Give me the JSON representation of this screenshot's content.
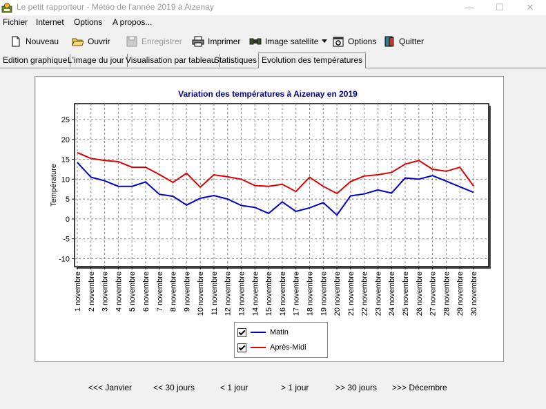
{
  "window": {
    "title": "Le petit rapporteur - Météo de l'année 2019 à Aizenay",
    "minimize": "—",
    "maximize": "☐",
    "close": "✕"
  },
  "menu": [
    "Fichier",
    "Internet",
    "Options",
    "A propos..."
  ],
  "toolbar": {
    "nouveau": "Nouveau",
    "ouvrir": "Ouvrir",
    "enregistrer": "Enregistrer",
    "imprimer": "Imprimer",
    "image_satellite": "Image satellite",
    "options": "Options",
    "quitter": "Quitter"
  },
  "tabs": [
    "Edition graphique",
    "L'image du jour",
    "Visualisation par tableau",
    "Statistiques",
    "Evolution des températures"
  ],
  "active_tab": 4,
  "nav": {
    "prev_year": "<<< Janvier",
    "prev_30": "<< 30 jours",
    "prev_1": "< 1 jour",
    "next_1": "> 1 jour",
    "next_30": ">> 30 jours",
    "next_year": ">>> Décembre"
  },
  "colors": {
    "matin": "#0000cc",
    "apres_midi": "#dd0000",
    "title": "#000080"
  },
  "chart_data": {
    "type": "line",
    "title": "Variation des températures à Aizenay en 2019",
    "ylabel": "Température",
    "xlabel": "",
    "ylim": [
      -12,
      29
    ],
    "yticks": [
      -10,
      -5,
      0,
      5,
      10,
      15,
      20,
      25
    ],
    "grid": true,
    "legend_position": "bottom",
    "categories": [
      "1 novembre",
      "2 novembre",
      "3 novembre",
      "4 novembre",
      "5 novembre",
      "6 novembre",
      "7 novembre",
      "8 novembre",
      "9 novembre",
      "10 novembre",
      "11 novembre",
      "12 novembre",
      "13 novembre",
      "14 novembre",
      "15 novembre",
      "16 novembre",
      "17 novembre",
      "18 novembre",
      "19 novembre",
      "20 novembre",
      "21 novembre",
      "22 novembre",
      "23 novembre",
      "24 novembre",
      "25 novembre",
      "26 novembre",
      "27 novembre",
      "28 novembre",
      "29 novembre",
      "30 novembre"
    ],
    "series": [
      {
        "name": "Matin",
        "values": [
          14.2,
          10.5,
          9.6,
          8.2,
          8.2,
          9.3,
          6.2,
          5.7,
          3.5,
          5.2,
          5.9,
          5.0,
          3.4,
          2.9,
          1.4,
          4.3,
          1.9,
          2.8,
          4.1,
          1.0,
          5.8,
          6.3,
          7.3,
          6.5,
          10.3,
          10.0,
          10.9,
          9.5,
          8.1,
          6.7
        ]
      },
      {
        "name": "Après-Midi",
        "values": [
          16.7,
          15.2,
          14.7,
          14.4,
          13.0,
          13.0,
          11.2,
          9.2,
          11.5,
          8.0,
          11.1,
          10.6,
          10.0,
          8.4,
          8.2,
          8.7,
          6.9,
          10.5,
          8.2,
          6.4,
          9.4,
          10.8,
          11.1,
          11.7,
          13.8,
          14.7,
          12.5,
          12.0,
          13.0,
          8.3
        ]
      }
    ]
  }
}
